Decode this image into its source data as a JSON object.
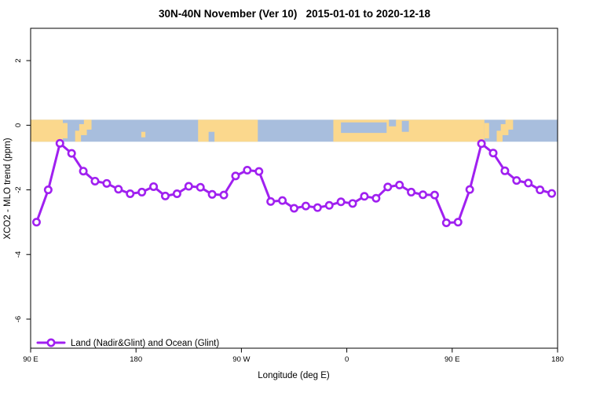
{
  "chart_data": {
    "type": "line",
    "title": "30N-40N November (Ver 10)   2015-01-01 to 2020-12-18",
    "xlabel": "Longitude (deg E)",
    "ylabel": "XCO2 - MLO trend (ppm)",
    "xlim": [
      90,
      540
    ],
    "ylim": [
      -6.9,
      3.0
    ],
    "grid": false,
    "x_ticks": [
      {
        "value": 90,
        "label": "90 E"
      },
      {
        "value": 180,
        "label": "180"
      },
      {
        "value": 270,
        "label": "90 W"
      },
      {
        "value": 360,
        "label": "0"
      },
      {
        "value": 450,
        "label": "90 E"
      },
      {
        "value": 540,
        "label": "180"
      }
    ],
    "y_ticks": [
      {
        "value": 2,
        "label": "2"
      },
      {
        "value": 0,
        "label": "0"
      },
      {
        "value": -2,
        "label": "-2"
      },
      {
        "value": -4,
        "label": "-4"
      },
      {
        "value": -6,
        "label": "-6"
      }
    ],
    "legend": {
      "position": "bottom-left",
      "entries": [
        {
          "label": "Land (Nadir&Glint) and Ocean (Glint)",
          "color": "#a020f0",
          "marker": "open-circle"
        }
      ]
    },
    "series": [
      {
        "name": "Land (Nadir&Glint) and Ocean (Glint)",
        "color": "#a020f0",
        "marker": "open-circle",
        "x": [
          95,
          105,
          115,
          125,
          135,
          145,
          155,
          165,
          175,
          185,
          195,
          205,
          215,
          225,
          235,
          245,
          255,
          265,
          275,
          285,
          295,
          305,
          315,
          325,
          335,
          345,
          355,
          365,
          375,
          385,
          395,
          405,
          415,
          425,
          435,
          445,
          455,
          465,
          475,
          485,
          495,
          505,
          515,
          525,
          535
        ],
        "values": [
          -3.0,
          -2.0,
          -0.56,
          -0.87,
          -1.42,
          -1.73,
          -1.8,
          -1.98,
          -2.12,
          -2.07,
          -1.9,
          -2.19,
          -2.12,
          -1.89,
          -1.92,
          -2.14,
          -2.16,
          -1.57,
          -1.39,
          -1.43,
          -2.36,
          -2.33,
          -2.57,
          -2.5,
          -2.55,
          -2.48,
          -2.37,
          -2.42,
          -2.2,
          -2.26,
          -1.91,
          -1.85,
          -2.07,
          -2.15,
          -2.16,
          -3.02,
          -3.0,
          -1.99,
          -0.57,
          -0.86,
          -1.41,
          -1.71,
          -1.79,
          -2.0,
          -2.11
        ]
      }
    ],
    "map_band": {
      "description": "world-map latitude strip drawn along the zero line",
      "y_range": [
        -0.51,
        0.17
      ],
      "ocean_color": "#a8bedd",
      "land_color": "#fbd88d",
      "land_segments": [
        [
          90,
          117.5
        ],
        [
          233,
          284
        ],
        [
          348.5,
          477.5
        ]
      ],
      "island_patches": [
        [
          117.5,
          121.5,
          0.15,
          0.85
        ],
        [
          128,
          133,
          0.5,
          1.0
        ],
        [
          131.5,
          138,
          0.2,
          0.7
        ],
        [
          135.5,
          142,
          0.0,
          0.45
        ],
        [
          184.5,
          188,
          0.55,
          0.8
        ],
        [
          477.5,
          481.5,
          0.15,
          0.85
        ],
        [
          488,
          493,
          0.5,
          1.0
        ],
        [
          491.5,
          498,
          0.2,
          0.7
        ],
        [
          495.5,
          502,
          0.0,
          0.45
        ]
      ],
      "sea_patches": [
        [
          242,
          247,
          0.55,
          1.0
        ],
        [
          355,
          394,
          0.12,
          0.6
        ],
        [
          396,
          402,
          0.0,
          0.3
        ],
        [
          407,
          413,
          0.05,
          0.55
        ]
      ]
    }
  }
}
